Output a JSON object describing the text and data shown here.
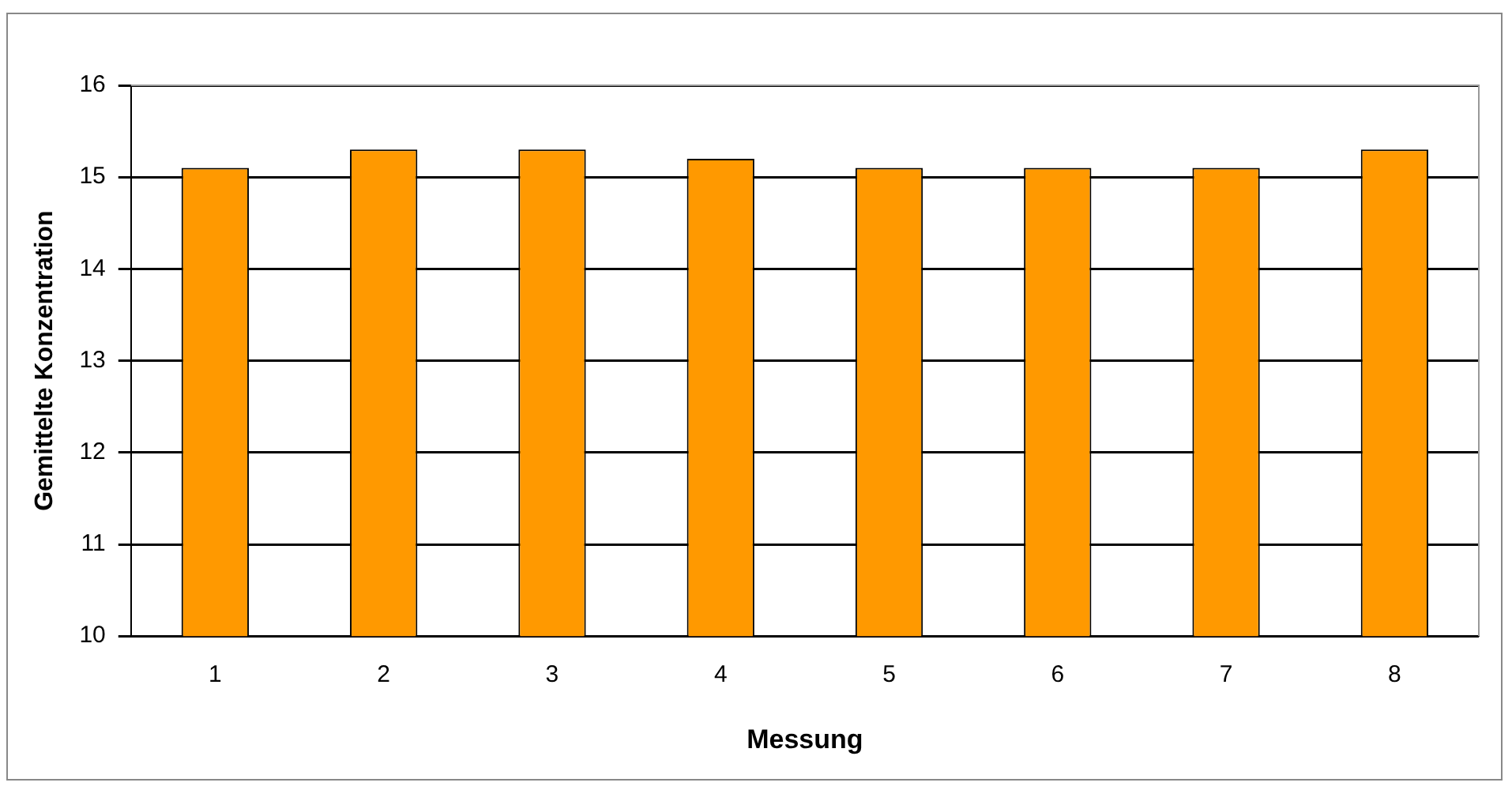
{
  "chart_data": {
    "type": "bar",
    "xlabel": "Messung",
    "ylabel": "Gemittelte Konzentration",
    "categories": [
      "1",
      "2",
      "3",
      "4",
      "5",
      "6",
      "7",
      "8"
    ],
    "values": [
      15.1,
      15.3,
      15.3,
      15.2,
      15.1,
      15.1,
      15.1,
      15.3
    ],
    "color": "#ff9900",
    "ylim": [
      10,
      16
    ],
    "yticks": [
      10,
      11,
      12,
      13,
      14,
      15,
      16
    ],
    "grid": "y",
    "legend": false
  }
}
